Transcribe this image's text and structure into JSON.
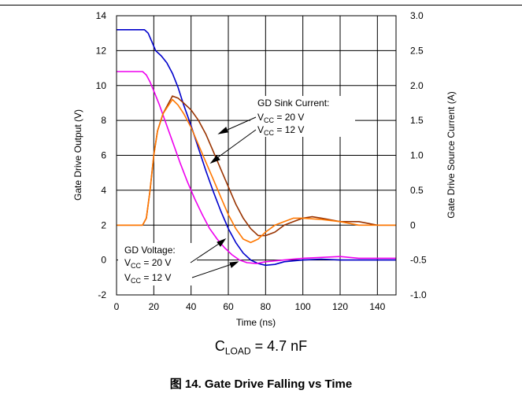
{
  "page_rule": true,
  "chart_data": {
    "type": "line",
    "title": "",
    "xlabel": "Time (ns)",
    "ylabel_left": "Gate Drive Output (V)",
    "ylabel_right": "Gate Drive Source Current (A)",
    "xlim": [
      0,
      150
    ],
    "ylim_left": [
      -2,
      14
    ],
    "ylim_right": [
      -1.0,
      3.0
    ],
    "x_ticks": [
      "0",
      "20",
      "40",
      "60",
      "80",
      "100",
      "120",
      "140"
    ],
    "y_left_ticks": [
      "-2",
      "0",
      "2",
      "4",
      "6",
      "8",
      "10",
      "12",
      "14"
    ],
    "y_right_ticks": [
      "-1.0",
      "-0.5",
      "0",
      "0.5",
      "1.0",
      "1.5",
      "2.0",
      "2.5",
      "3.0"
    ],
    "grid": true,
    "series": [
      {
        "color": "#0000cc",
        "axis": "left",
        "x": [
          0,
          15,
          17,
          19,
          21,
          24,
          27,
          30,
          33,
          36,
          40,
          44,
          48,
          52,
          56,
          60,
          64,
          68,
          72,
          76,
          80,
          85,
          90,
          100,
          110,
          120,
          130,
          140,
          150
        ],
        "y": [
          13.2,
          13.2,
          13.0,
          12.5,
          12.0,
          11.7,
          11.3,
          10.7,
          9.9,
          8.9,
          7.7,
          6.4,
          5.1,
          3.9,
          2.8,
          1.8,
          1.0,
          0.4,
          0.0,
          -0.2,
          -0.3,
          -0.25,
          -0.1,
          0.0,
          0.05,
          0.0,
          0.0,
          0.0,
          0.0
        ]
      },
      {
        "color": "#ee00ee",
        "axis": "left",
        "x": [
          0,
          14,
          16,
          18,
          20,
          23,
          26,
          30,
          34,
          38,
          42,
          46,
          50,
          54,
          58,
          62,
          66,
          70,
          75,
          80,
          90,
          100,
          110,
          120,
          130,
          140,
          150
        ],
        "y": [
          10.8,
          10.8,
          10.6,
          10.2,
          9.7,
          8.9,
          8.0,
          6.8,
          5.6,
          4.5,
          3.5,
          2.6,
          1.8,
          1.2,
          0.7,
          0.3,
          0.0,
          -0.15,
          -0.2,
          -0.1,
          0.0,
          0.1,
          0.15,
          0.2,
          0.1,
          0.1,
          0.1
        ]
      },
      {
        "color": "#993300",
        "axis": "right",
        "x": [
          0,
          10,
          14,
          16,
          18,
          20,
          22,
          25,
          28,
          30,
          33,
          36,
          40,
          44,
          48,
          52,
          56,
          60,
          64,
          68,
          72,
          76,
          80,
          85,
          90,
          95,
          100,
          105,
          110,
          120,
          130,
          140,
          150
        ],
        "y": [
          0.0,
          0.0,
          0.0,
          0.1,
          0.5,
          1.0,
          1.35,
          1.6,
          1.75,
          1.85,
          1.82,
          1.75,
          1.65,
          1.5,
          1.3,
          1.05,
          0.8,
          0.55,
          0.3,
          0.1,
          -0.05,
          -0.15,
          -0.15,
          -0.1,
          0.0,
          0.05,
          0.1,
          0.12,
          0.1,
          0.05,
          0.05,
          0.0,
          0.0
        ]
      },
      {
        "color": "#ff7700",
        "axis": "right",
        "x": [
          0,
          14,
          16,
          18,
          20,
          22,
          25,
          28,
          30,
          33,
          36,
          40,
          44,
          48,
          52,
          56,
          60,
          64,
          68,
          72,
          76,
          80,
          85,
          90,
          95,
          100,
          110,
          120,
          130,
          140,
          150
        ],
        "y": [
          0.0,
          0.0,
          0.1,
          0.5,
          1.0,
          1.35,
          1.6,
          1.72,
          1.8,
          1.72,
          1.6,
          1.4,
          1.15,
          0.9,
          0.65,
          0.4,
          0.15,
          -0.05,
          -0.2,
          -0.25,
          -0.2,
          -0.1,
          0.0,
          0.05,
          0.1,
          0.1,
          0.08,
          0.05,
          0.0,
          0.0,
          0.0
        ]
      }
    ],
    "annotations": {
      "sink_title": "GD Sink Current:",
      "sink_20_v": "V",
      "sink_20_sub": "CC",
      "sink_20_val": " = 20 V",
      "sink_12_v": "V",
      "sink_12_sub": "CC",
      "sink_12_val": " = 12 V",
      "volt_title": "GD Voltage:",
      "volt_20_v": "V",
      "volt_20_sub": "CC",
      "volt_20_val": " = 20 V",
      "volt_12_v": "V",
      "volt_12_sub": "CC",
      "volt_12_val": " = 12 V"
    }
  },
  "cload": {
    "c": "C",
    "sub": "LOAD",
    "rest": " = 4.7 nF"
  },
  "caption": "图 14. Gate Drive Falling vs Time"
}
